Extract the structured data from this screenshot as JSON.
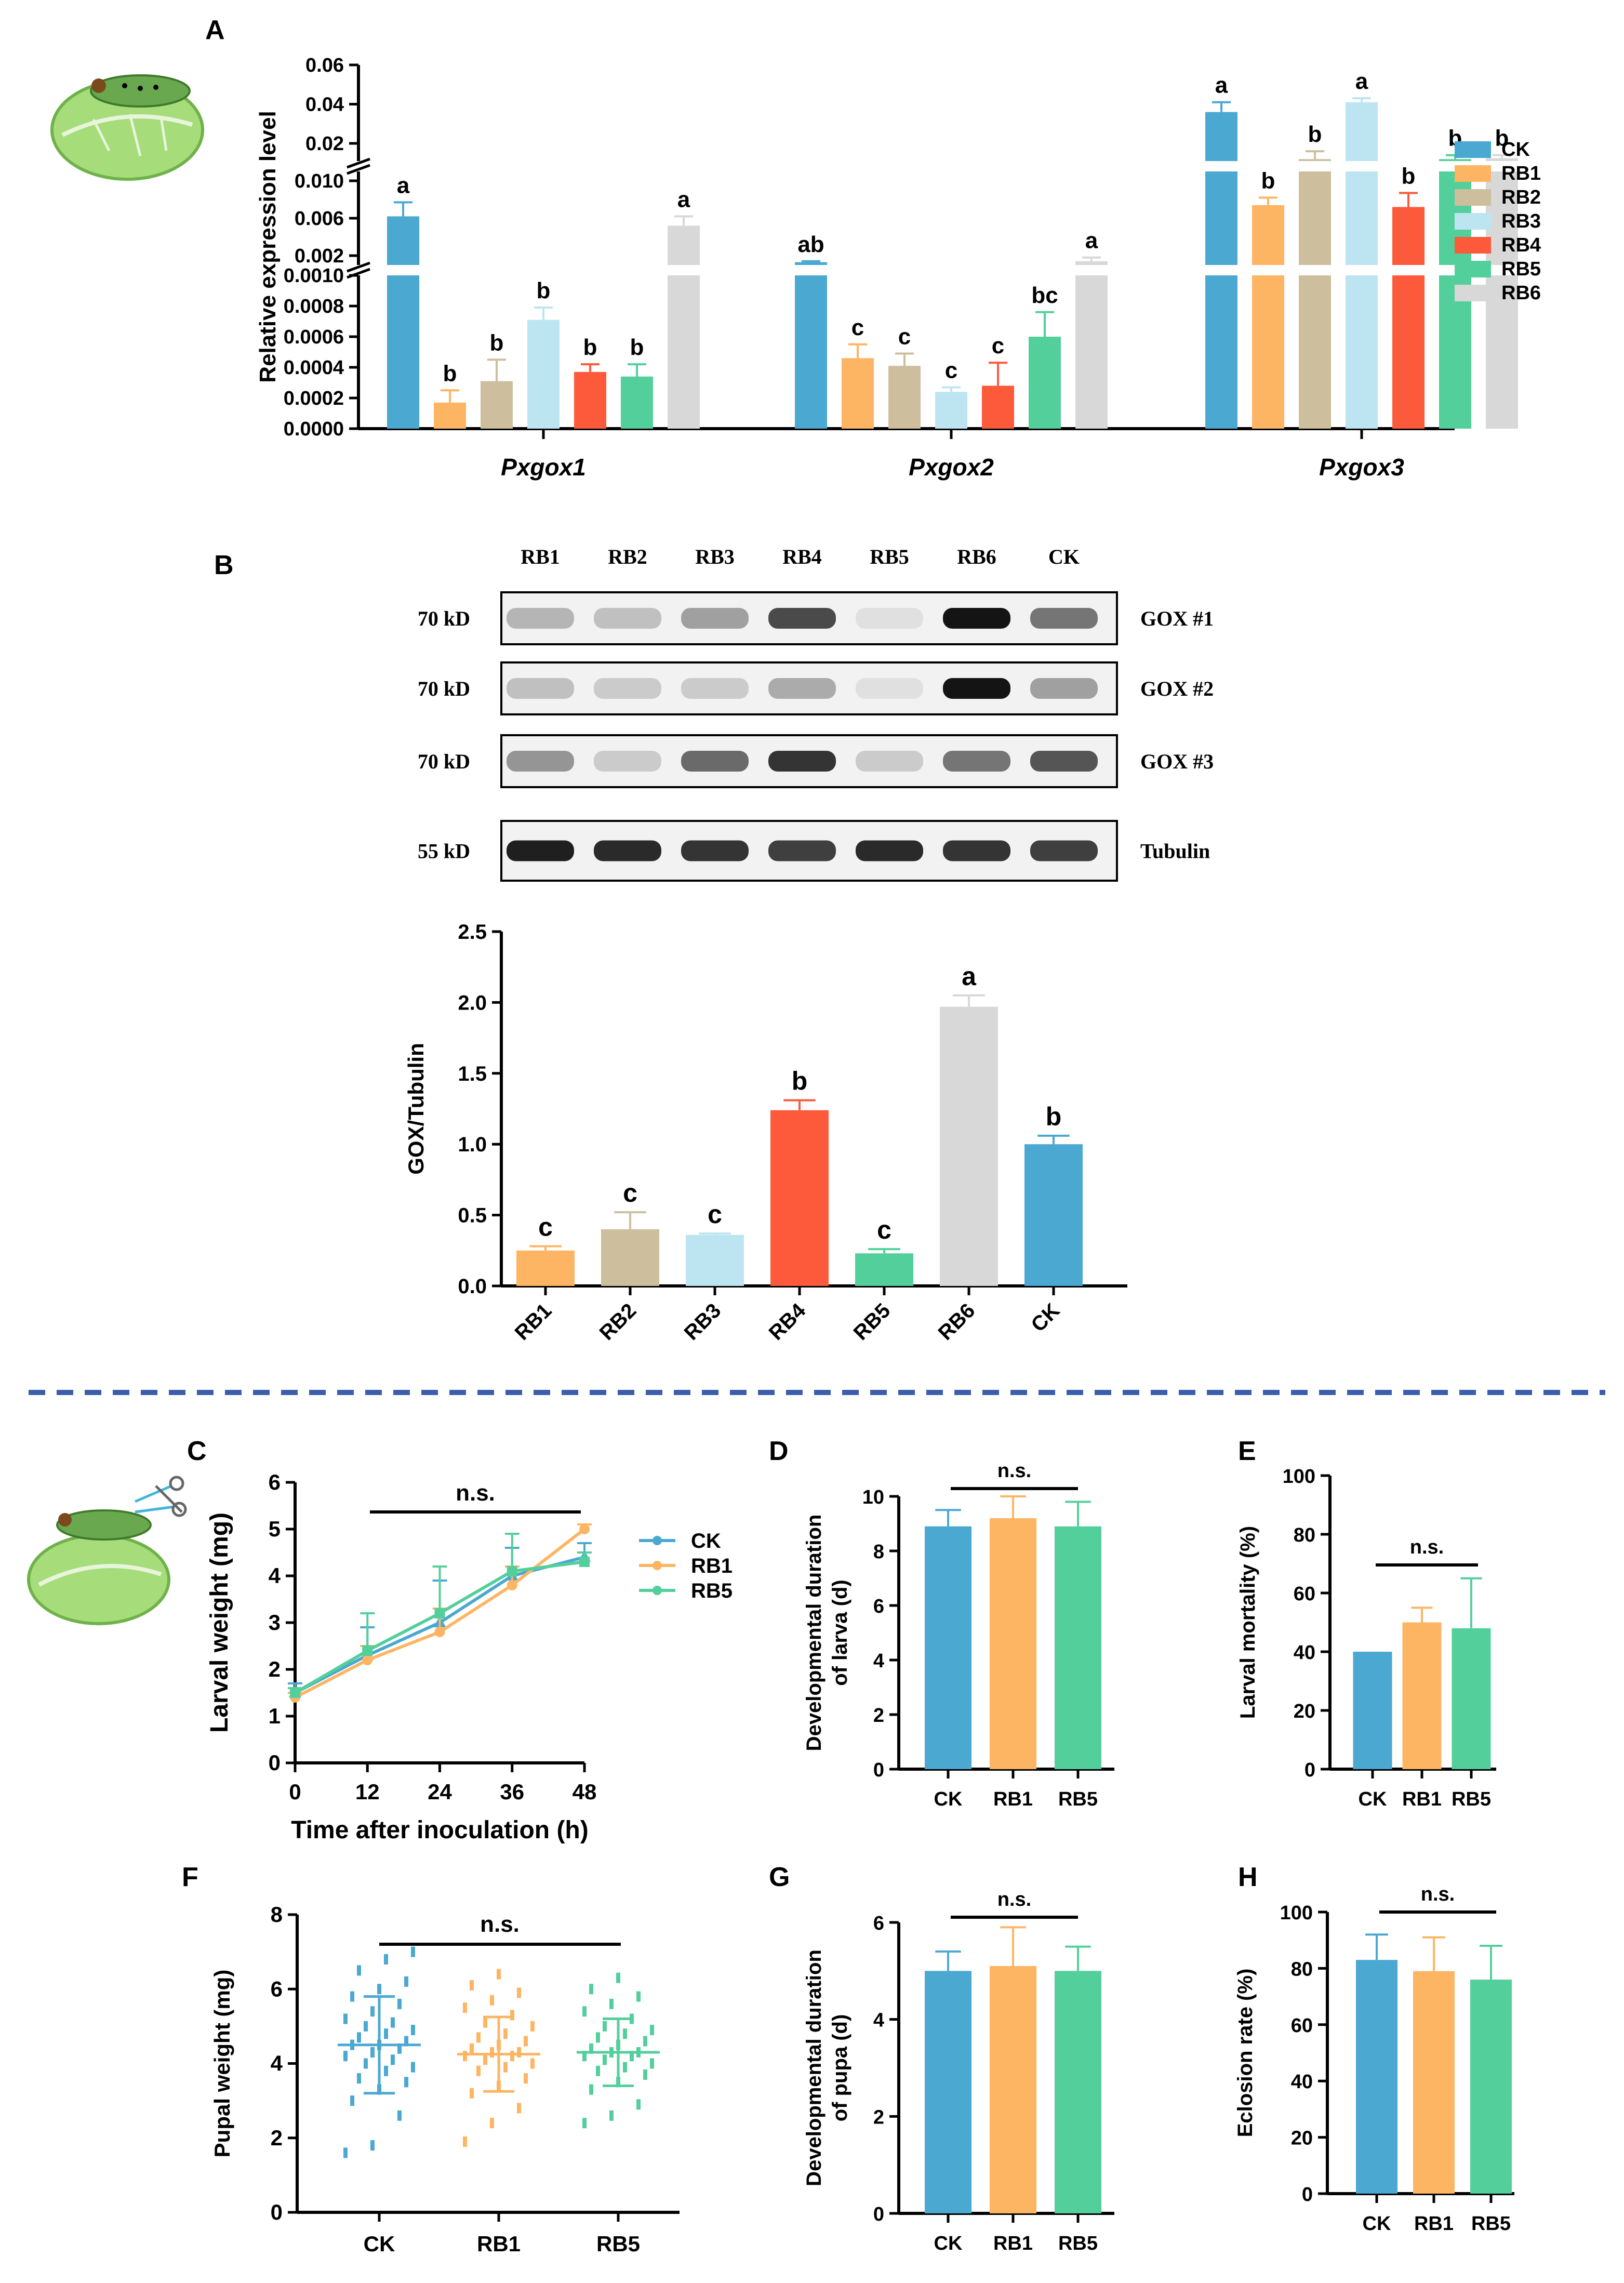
{
  "colors": {
    "CK": "#4aa8d1",
    "RB1": "#fdb563",
    "RB2": "#cdbf9e",
    "RB3": "#bde5f1",
    "RB4": "#fc5a3a",
    "RB5": "#53cf9b",
    "RB6": "#d8d8d8",
    "divider": "#3a5eaa"
  },
  "chart_data": [
    {
      "panel": "A",
      "type": "bar",
      "ylabel": "Relative expression level",
      "categories": [
        "Pxgox1",
        "Pxgox2",
        "Pxgox3"
      ],
      "legend": [
        "CK",
        "RB1",
        "RB2",
        "RB3",
        "RB4",
        "RB5",
        "RB6"
      ],
      "y_segments": [
        {
          "range": [
            0,
            0.001
          ],
          "ticks": [
            "0.0000",
            "0.0002",
            "0.0004",
            "0.0006",
            "0.0008",
            "0.0010"
          ]
        },
        {
          "range": [
            0.001,
            0.011
          ],
          "ticks": [
            "0.002",
            "0.006",
            "0.010"
          ]
        },
        {
          "range": [
            0.011,
            0.06
          ],
          "ticks": [
            "0.02",
            "0.04",
            "0.06"
          ]
        }
      ],
      "series": [
        {
          "name": "CK",
          "values": [
            0.0062,
            0.0013,
            0.036
          ],
          "errors": [
            0.0015,
            0.0001,
            0.005
          ],
          "letters": [
            "a",
            "ab",
            "a"
          ]
        },
        {
          "name": "RB1",
          "values": [
            0.00017,
            0.00046,
            0.0074
          ],
          "errors": [
            8e-05,
            9e-05,
            0.0008
          ],
          "letters": [
            "b",
            "c",
            "b"
          ]
        },
        {
          "name": "RB2",
          "values": [
            0.00031,
            0.00041,
            0.012
          ],
          "errors": [
            0.00014,
            8e-05,
            0.004
          ],
          "letters": [
            "b",
            "c",
            "b"
          ]
        },
        {
          "name": "RB3",
          "values": [
            0.00071,
            0.00024,
            0.041
          ],
          "errors": [
            8e-05,
            3e-05,
            0.002
          ],
          "letters": [
            "b",
            "c",
            "a"
          ]
        },
        {
          "name": "RB4",
          "values": [
            0.00037,
            0.00028,
            0.0072
          ],
          "errors": [
            5e-05,
            0.00015,
            0.0015
          ],
          "letters": [
            "b",
            "c",
            "b"
          ]
        },
        {
          "name": "RB5",
          "values": [
            0.00034,
            0.0006,
            0.012
          ],
          "errors": [
            8e-05,
            0.00016,
            0.002
          ],
          "letters": [
            "b",
            "bc",
            "b"
          ]
        },
        {
          "name": "RB6",
          "values": [
            0.0052,
            0.0014,
            0.0125
          ],
          "errors": [
            0.001,
            0.0004,
            0.0015
          ],
          "letters": [
            "a",
            "a",
            "b"
          ]
        }
      ]
    },
    {
      "panel": "B",
      "type": "bar",
      "ylabel": "GOX/Tubulin",
      "ylim": [
        0,
        2.5
      ],
      "yticks": [
        "0.0",
        "0.5",
        "1.0",
        "1.5",
        "2.0",
        "2.5"
      ],
      "categories": [
        "RB1",
        "RB2",
        "RB3",
        "RB4",
        "RB5",
        "RB6",
        "CK"
      ],
      "values": [
        0.25,
        0.4,
        0.36,
        1.24,
        0.23,
        1.97,
        1.0
      ],
      "errors": [
        0.03,
        0.12,
        0.01,
        0.07,
        0.03,
        0.08,
        0.06
      ],
      "letters": [
        "c",
        "c",
        "c",
        "b",
        "c",
        "a",
        "b"
      ]
    },
    {
      "panel": "C",
      "type": "line",
      "xlabel": "Time after inoculation (h)",
      "ylabel": "Larval weight (mg)",
      "x": [
        0,
        12,
        24,
        36,
        48
      ],
      "xlim": [
        0,
        48
      ],
      "ylim": [
        0,
        6
      ],
      "xticks": [
        "0",
        "12",
        "24",
        "36",
        "48"
      ],
      "yticks": [
        "0",
        "1",
        "2",
        "3",
        "4",
        "5",
        "6"
      ],
      "series": [
        {
          "name": "CK",
          "values": [
            1.5,
            2.3,
            3.0,
            4.0,
            4.4
          ],
          "errors": [
            0.2,
            0.6,
            0.9,
            0.6,
            0.3
          ]
        },
        {
          "name": "RB1",
          "values": [
            1.4,
            2.2,
            2.8,
            3.8,
            5.0
          ],
          "errors": [
            0.1,
            0.3,
            0.5,
            0.4,
            0.1
          ]
        },
        {
          "name": "RB5",
          "values": [
            1.5,
            2.4,
            3.2,
            4.1,
            4.3
          ],
          "errors": [
            0.1,
            0.8,
            1.0,
            0.8,
            0.2
          ]
        }
      ],
      "annotation": "n.s."
    },
    {
      "panel": "D",
      "type": "bar",
      "ylabel_lines": [
        "Developmental duration",
        "of larva (d)"
      ],
      "ylim": [
        0,
        10
      ],
      "yticks": [
        "0",
        "2",
        "4",
        "6",
        "8",
        "10"
      ],
      "categories": [
        "CK",
        "RB1",
        "RB5"
      ],
      "values": [
        8.9,
        9.2,
        8.9
      ],
      "errors": [
        0.6,
        0.8,
        0.9
      ],
      "annotation": "n.s."
    },
    {
      "panel": "E",
      "type": "bar",
      "ylabel": "Larval mortality (%)",
      "ylim": [
        0,
        100
      ],
      "yticks": [
        "0",
        "20",
        "40",
        "60",
        "80",
        "100"
      ],
      "categories": [
        "CK",
        "RB1",
        "RB5"
      ],
      "values": [
        40,
        50,
        48
      ],
      "errors": [
        0,
        5,
        17
      ],
      "annotation": "n.s."
    },
    {
      "panel": "F",
      "type": "scatter",
      "ylabel": "Pupal weight (mg)",
      "ylim": [
        0,
        8
      ],
      "yticks": [
        "0",
        "2",
        "4",
        "6",
        "8"
      ],
      "categories": [
        "CK",
        "RB1",
        "RB5"
      ],
      "means": [
        4.5,
        4.25,
        4.3
      ],
      "sds": [
        1.3,
        1.0,
        0.9
      ],
      "points": [
        [
          1.6,
          1.8,
          2.6,
          3.0,
          3.3,
          3.5,
          3.6,
          3.8,
          3.9,
          4.0,
          4.1,
          4.2,
          4.3,
          4.4,
          4.5,
          4.5,
          4.6,
          4.7,
          4.8,
          4.9,
          5.0,
          5.1,
          5.2,
          5.4,
          5.6,
          5.8,
          6.0,
          6.2,
          6.5,
          6.8,
          7.0
        ],
        [
          1.9,
          2.4,
          2.8,
          3.2,
          3.4,
          3.6,
          3.8,
          3.9,
          4.0,
          4.1,
          4.2,
          4.2,
          4.3,
          4.3,
          4.4,
          4.5,
          4.6,
          4.7,
          4.8,
          5.0,
          5.1,
          5.3,
          5.5,
          5.7,
          5.9,
          6.1,
          6.4
        ],
        [
          2.4,
          2.6,
          2.9,
          3.3,
          3.5,
          3.7,
          3.8,
          3.9,
          4.0,
          4.1,
          4.2,
          4.2,
          4.3,
          4.3,
          4.4,
          4.5,
          4.6,
          4.7,
          4.8,
          4.9,
          5.0,
          5.2,
          5.4,
          5.6,
          5.8,
          6.0,
          6.3
        ]
      ],
      "annotation": "n.s."
    },
    {
      "panel": "G",
      "type": "bar",
      "ylabel_lines": [
        "Developmental duration",
        "of pupa (d)"
      ],
      "ylim": [
        0,
        6
      ],
      "yticks": [
        "0",
        "2",
        "4",
        "6"
      ],
      "categories": [
        "CK",
        "RB1",
        "RB5"
      ],
      "values": [
        5.0,
        5.1,
        5.0
      ],
      "errors": [
        0.4,
        0.8,
        0.5
      ],
      "annotation": "n.s."
    },
    {
      "panel": "H",
      "type": "bar",
      "ylabel": "Eclosion rate (%)",
      "ylim": [
        0,
        100
      ],
      "yticks": [
        "0",
        "20",
        "40",
        "60",
        "80",
        "100"
      ],
      "categories": [
        "CK",
        "RB1",
        "RB5"
      ],
      "values": [
        83,
        79,
        76
      ],
      "errors": [
        9,
        12,
        12
      ],
      "annotation": "n.s."
    }
  ],
  "western_blot": {
    "lanes": [
      "RB1",
      "RB2",
      "RB3",
      "RB4",
      "RB5",
      "RB6",
      "CK"
    ],
    "rows": [
      {
        "size": "70 kD",
        "label": "GOX #1",
        "intensities": [
          0.25,
          0.2,
          0.35,
          0.75,
          0.05,
          1.0,
          0.55
        ]
      },
      {
        "size": "70 kD",
        "label": "GOX #2",
        "intensities": [
          0.2,
          0.15,
          0.15,
          0.3,
          0.05,
          1.0,
          0.35
        ]
      },
      {
        "size": "70 kD",
        "label": "GOX #3",
        "intensities": [
          0.4,
          0.15,
          0.6,
          0.85,
          0.15,
          0.55,
          0.7
        ]
      },
      {
        "size": "55 kD",
        "label": "Tubulin",
        "intensities": [
          0.95,
          0.9,
          0.85,
          0.8,
          0.9,
          0.85,
          0.8
        ]
      }
    ]
  },
  "panels": {
    "A": "A",
    "B": "B",
    "C": "C",
    "D": "D",
    "E": "E",
    "F": "F",
    "G": "G",
    "H": "H"
  }
}
